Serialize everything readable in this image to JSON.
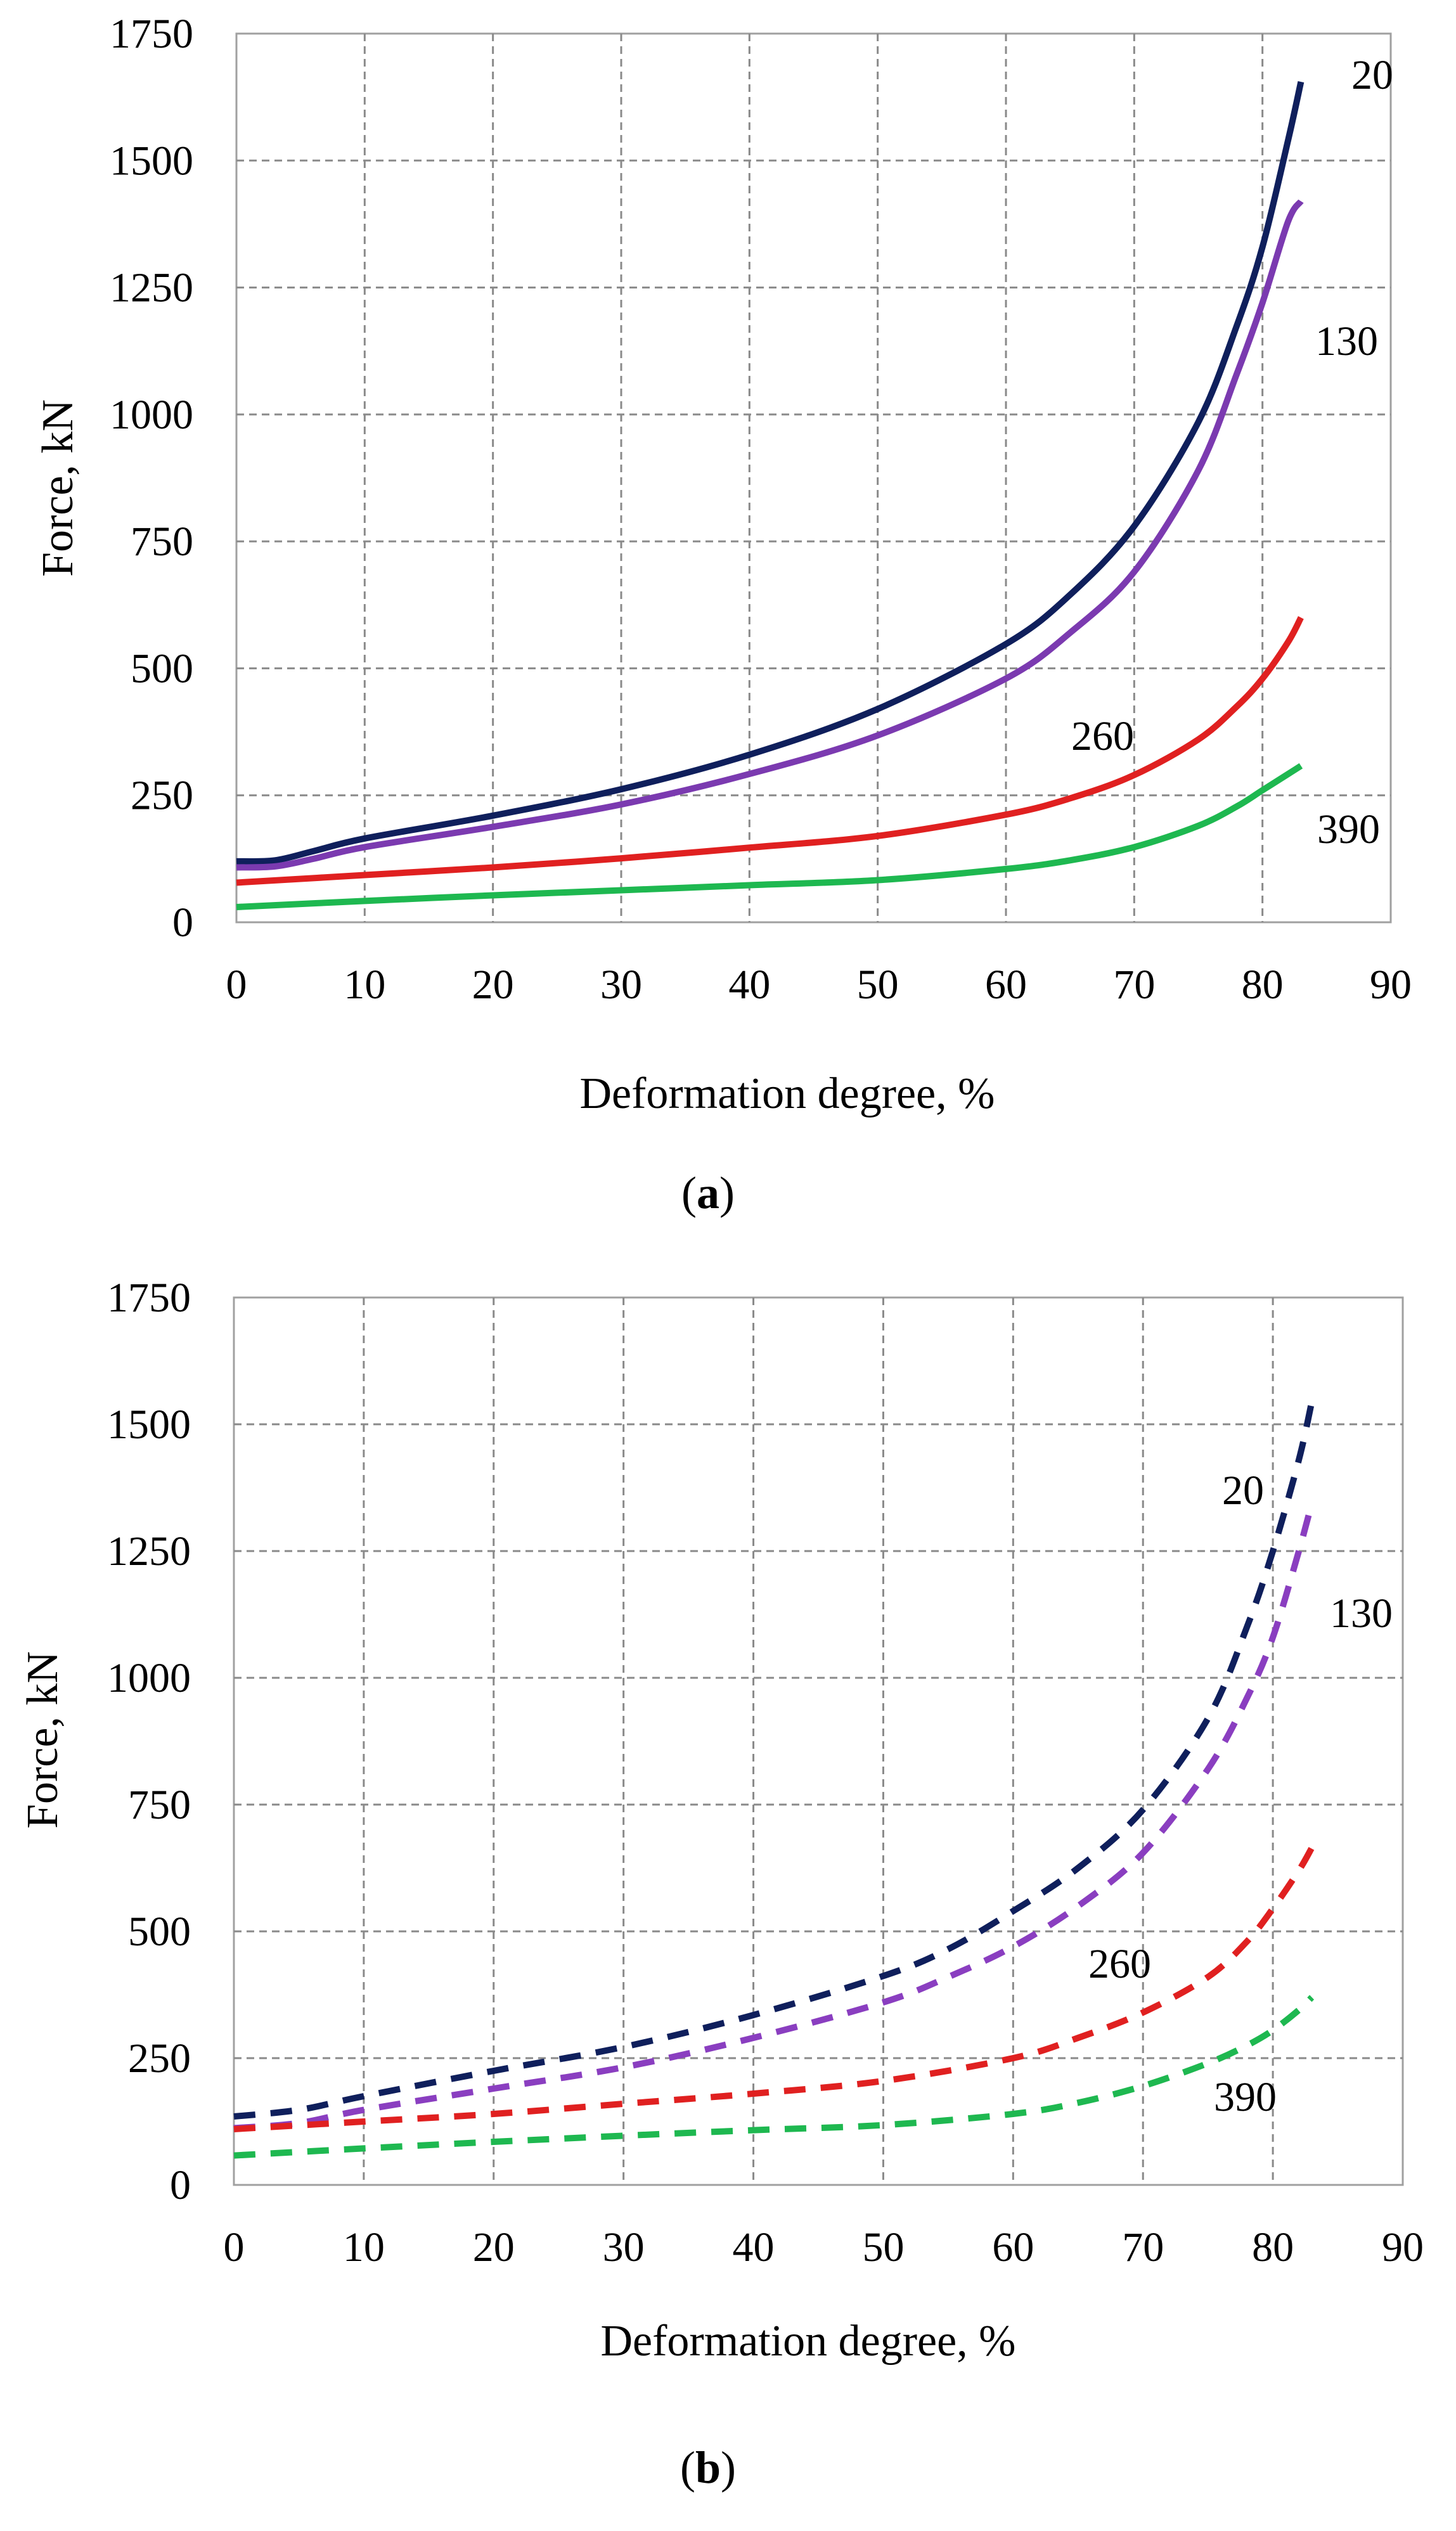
{
  "chart_data": [
    {
      "type": "line",
      "panel": "a",
      "line_style": "solid",
      "xlabel": "Deformation degree, %",
      "ylabel": "Force, kN",
      "xlim": [
        0,
        90
      ],
      "ylim": [
        0,
        1750
      ],
      "xticks": [
        "0",
        "10",
        "20",
        "30",
        "40",
        "50",
        "60",
        "70",
        "80",
        "90"
      ],
      "yticks": [
        "0",
        "250",
        "500",
        "750",
        "1000",
        "1250",
        "1500",
        "1750"
      ],
      "grid": true,
      "series": [
        {
          "name": "20",
          "label": "20",
          "color": "#0f1f5c",
          "points": [
            [
              0,
              120
            ],
            [
              3,
              122
            ],
            [
              6,
              140
            ],
            [
              10,
              165
            ],
            [
              20,
              210
            ],
            [
              30,
              262
            ],
            [
              40,
              330
            ],
            [
              50,
              420
            ],
            [
              60,
              548
            ],
            [
              65,
              645
            ],
            [
              70,
              780
            ],
            [
              75,
              985
            ],
            [
              78,
              1175
            ],
            [
              80,
              1330
            ],
            [
              82,
              1540
            ],
            [
              83,
              1655
            ]
          ]
        },
        {
          "name": "130",
          "label": "130",
          "color": "#7b3ab0",
          "points": [
            [
              0,
              108
            ],
            [
              3,
              110
            ],
            [
              6,
              125
            ],
            [
              10,
              148
            ],
            [
              20,
              188
            ],
            [
              30,
              232
            ],
            [
              40,
              292
            ],
            [
              50,
              368
            ],
            [
              60,
              480
            ],
            [
              65,
              570
            ],
            [
              70,
              690
            ],
            [
              75,
              890
            ],
            [
              78,
              1080
            ],
            [
              80,
              1220
            ],
            [
              82,
              1380
            ],
            [
              83,
              1420
            ]
          ]
        },
        {
          "name": "260",
          "label": "260",
          "color": "#e02020",
          "points": [
            [
              0,
              78
            ],
            [
              10,
              93
            ],
            [
              20,
              108
            ],
            [
              30,
              126
            ],
            [
              40,
              147
            ],
            [
              50,
              170
            ],
            [
              60,
              212
            ],
            [
              65,
              244
            ],
            [
              70,
              290
            ],
            [
              75,
              360
            ],
            [
              78,
              425
            ],
            [
              80,
              480
            ],
            [
              82,
              552
            ],
            [
              83,
              600
            ]
          ]
        },
        {
          "name": "390",
          "label": "390",
          "color": "#1eb850",
          "points": [
            [
              0,
              30
            ],
            [
              10,
              42
            ],
            [
              20,
              53
            ],
            [
              30,
              63
            ],
            [
              40,
              73
            ],
            [
              50,
              83
            ],
            [
              60,
              105
            ],
            [
              65,
              122
            ],
            [
              70,
              148
            ],
            [
              75,
              190
            ],
            [
              78,
              228
            ],
            [
              80,
              260
            ],
            [
              82,
              292
            ],
            [
              83,
              308
            ]
          ]
        }
      ],
      "panel_label": "a"
    },
    {
      "type": "line",
      "panel": "b",
      "line_style": "dashed",
      "xlabel": "Deformation degree, %",
      "ylabel": "Force, kN",
      "xlim": [
        0,
        90
      ],
      "ylim": [
        0,
        1750
      ],
      "xticks": [
        "0",
        "10",
        "20",
        "30",
        "40",
        "50",
        "60",
        "70",
        "80",
        "90"
      ],
      "yticks": [
        "0",
        "250",
        "500",
        "750",
        "1000",
        "1250",
        "1500",
        "1750"
      ],
      "grid": true,
      "series": [
        {
          "name": "20",
          "label": "20",
          "color": "#0f1f5c",
          "points": [
            [
              0,
              135
            ],
            [
              5,
              148
            ],
            [
              10,
              175
            ],
            [
              20,
              225
            ],
            [
              30,
              272
            ],
            [
              40,
              335
            ],
            [
              50,
              412
            ],
            [
              55,
              465
            ],
            [
              60,
              540
            ],
            [
              65,
              625
            ],
            [
              70,
              740
            ],
            [
              75,
              920
            ],
            [
              78,
              1100
            ],
            [
              80,
              1250
            ],
            [
              82,
              1430
            ],
            [
              83,
              1545
            ]
          ]
        },
        {
          "name": "130",
          "label": "130",
          "color": "#8a3ec0",
          "points": [
            [
              0,
              112
            ],
            [
              5,
              122
            ],
            [
              10,
              148
            ],
            [
              20,
              190
            ],
            [
              30,
              232
            ],
            [
              40,
              290
            ],
            [
              50,
              360
            ],
            [
              55,
              410
            ],
            [
              60,
              470
            ],
            [
              65,
              550
            ],
            [
              70,
              655
            ],
            [
              75,
              820
            ],
            [
              78,
              960
            ],
            [
              80,
              1080
            ],
            [
              82,
              1250
            ],
            [
              83,
              1345
            ]
          ]
        },
        {
          "name": "260",
          "label": "260",
          "color": "#e02020",
          "points": [
            [
              0,
              110
            ],
            [
              10,
              125
            ],
            [
              20,
              140
            ],
            [
              30,
              160
            ],
            [
              40,
              180
            ],
            [
              50,
              205
            ],
            [
              60,
              250
            ],
            [
              65,
              290
            ],
            [
              70,
              340
            ],
            [
              75,
              410
            ],
            [
              78,
              480
            ],
            [
              80,
              545
            ],
            [
              82,
              620
            ],
            [
              83,
              665
            ]
          ]
        },
        {
          "name": "390",
          "label": "390",
          "color": "#1eb850",
          "points": [
            [
              0,
              58
            ],
            [
              10,
              72
            ],
            [
              20,
              85
            ],
            [
              30,
              97
            ],
            [
              40,
              108
            ],
            [
              50,
              118
            ],
            [
              60,
              140
            ],
            [
              65,
              162
            ],
            [
              70,
              195
            ],
            [
              75,
              240
            ],
            [
              78,
              275
            ],
            [
              80,
              305
            ],
            [
              82,
              345
            ],
            [
              83,
              370
            ]
          ]
        }
      ],
      "panel_label": "b"
    }
  ]
}
